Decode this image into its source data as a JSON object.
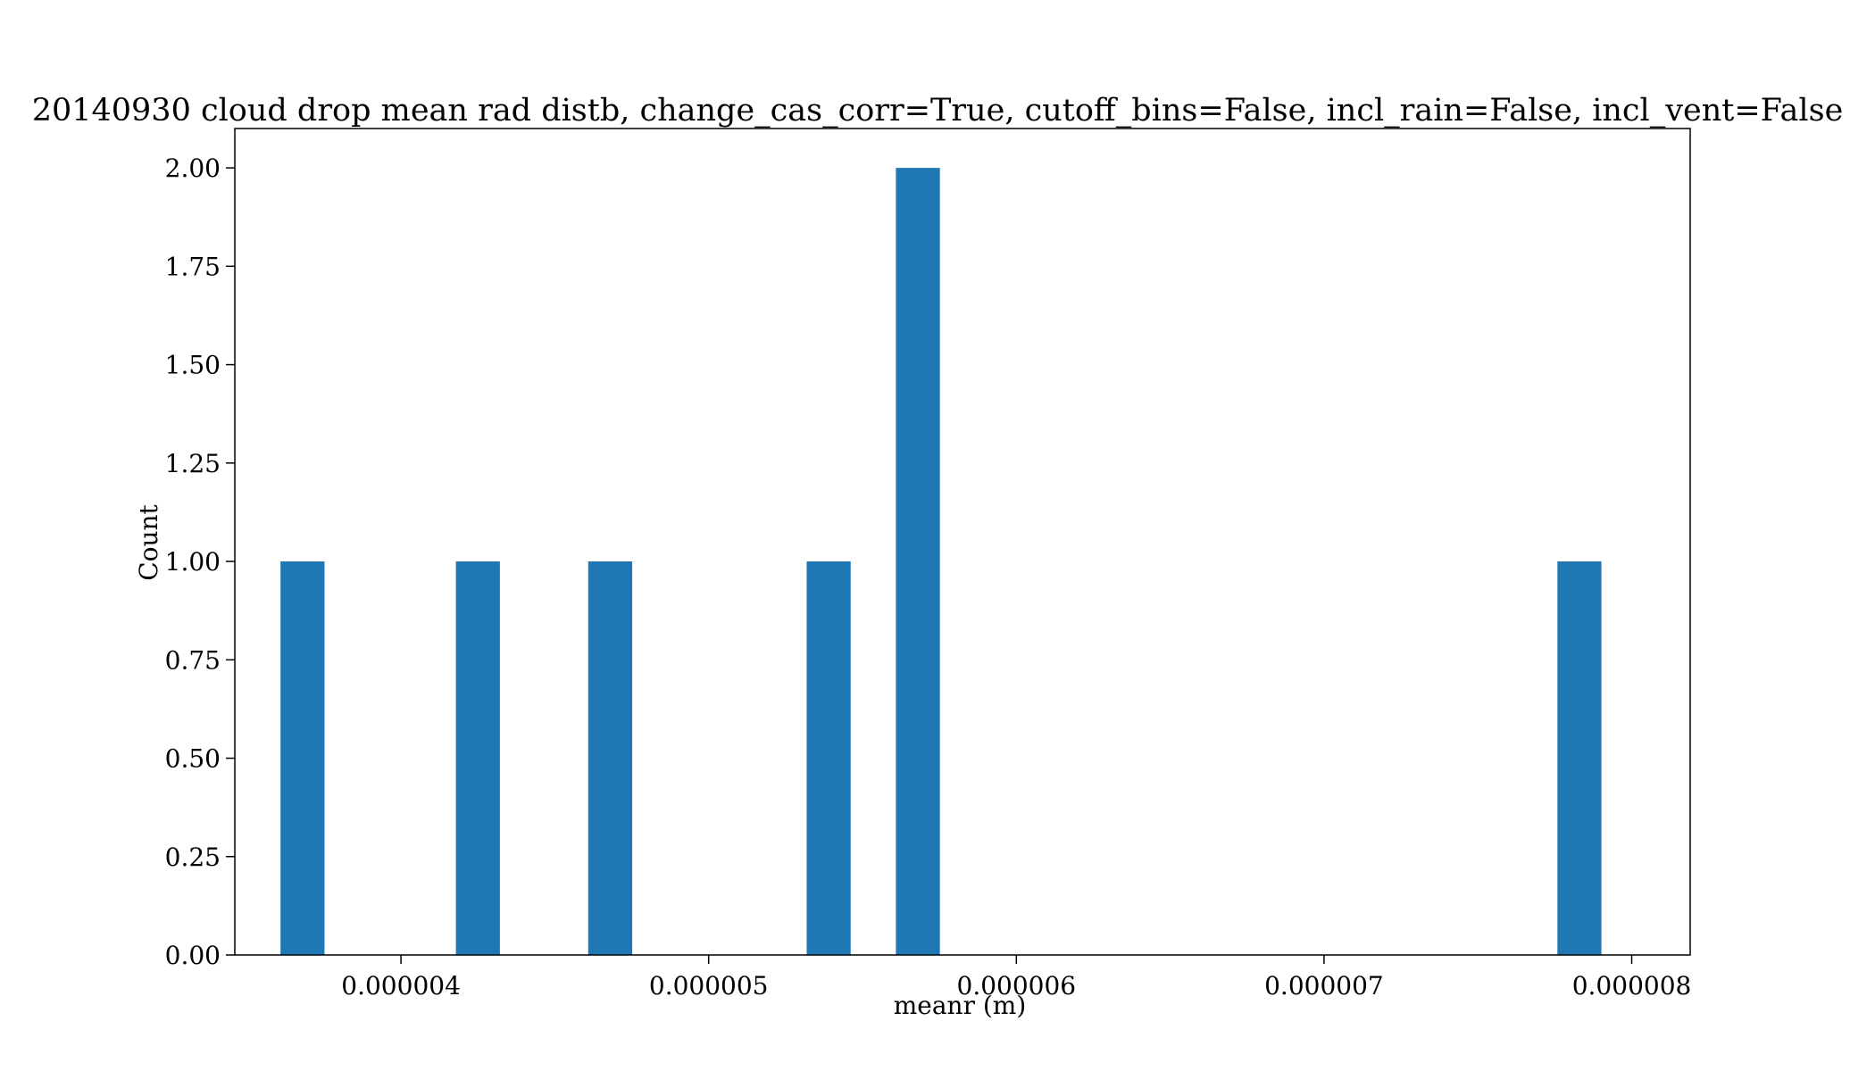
{
  "chart_data": {
    "type": "bar",
    "title": "20140930 cloud drop mean rad distb, change_cas_corr=True, cutoff_bins=False, incl_rain=False, incl_vent=False",
    "xlabel": "meanr (m)",
    "ylabel": "Count",
    "xlim": [
      3.46e-06,
      8.19e-06
    ],
    "ylim": [
      0,
      2.1
    ],
    "xticks": [
      4e-06,
      5e-06,
      6e-06,
      7e-06,
      8e-06
    ],
    "xtick_labels": [
      "0.000004",
      "0.000005",
      "0.000006",
      "0.000007",
      "0.000008"
    ],
    "yticks": [
      0,
      0.25,
      0.5,
      0.75,
      1.0,
      1.25,
      1.5,
      1.75,
      2.0
    ],
    "ytick_labels": [
      "0.00",
      "0.25",
      "0.50",
      "0.75",
      "1.00",
      "1.25",
      "1.50",
      "1.75",
      "2.00"
    ],
    "bin_width": 1.43e-07,
    "bars": [
      {
        "x": 3.68e-06,
        "value": 1
      },
      {
        "x": 4.25e-06,
        "value": 1
      },
      {
        "x": 4.68e-06,
        "value": 1
      },
      {
        "x": 5.39e-06,
        "value": 1
      },
      {
        "x": 5.68e-06,
        "value": 2
      },
      {
        "x": 7.83e-06,
        "value": 1
      }
    ],
    "bar_color": "#1f77b4",
    "grid": false,
    "legend": "none"
  }
}
